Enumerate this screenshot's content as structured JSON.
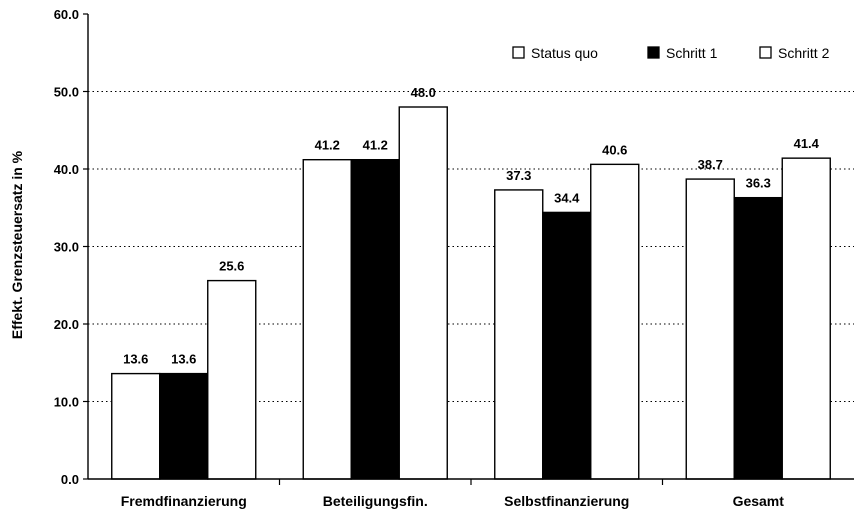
{
  "chart_data": {
    "type": "bar",
    "title": "",
    "xlabel": "",
    "ylabel": "Effekt. Grenzsteuersatz in %",
    "ylim": [
      0,
      60
    ],
    "yticks": [
      "0.0",
      "10.0",
      "20.0",
      "30.0",
      "40.0",
      "50.0",
      "60.0"
    ],
    "grid": "horizontal dotted",
    "legend_position": "top-right",
    "categories": [
      "Fremdfinanzierung",
      "Beteiligungsfin.",
      "Selbstfinanzierung",
      "Gesamt"
    ],
    "series": [
      {
        "name": "Status quo",
        "color": "#ffffff",
        "values": [
          13.6,
          41.2,
          37.3,
          38.7
        ],
        "labels": [
          "13.6",
          "41.2",
          "37.3",
          "38.7"
        ]
      },
      {
        "name": "Schritt 1",
        "color": "#000000",
        "values": [
          13.6,
          41.2,
          34.4,
          36.3
        ],
        "labels": [
          "13.6",
          "41.2",
          "34.4",
          "36.3"
        ]
      },
      {
        "name": "Schritt 2",
        "color": "#ffffff",
        "values": [
          25.6,
          48.0,
          40.6,
          41.4
        ],
        "labels": [
          "25.6",
          "48.0",
          "40.6",
          "41.4"
        ]
      }
    ]
  }
}
